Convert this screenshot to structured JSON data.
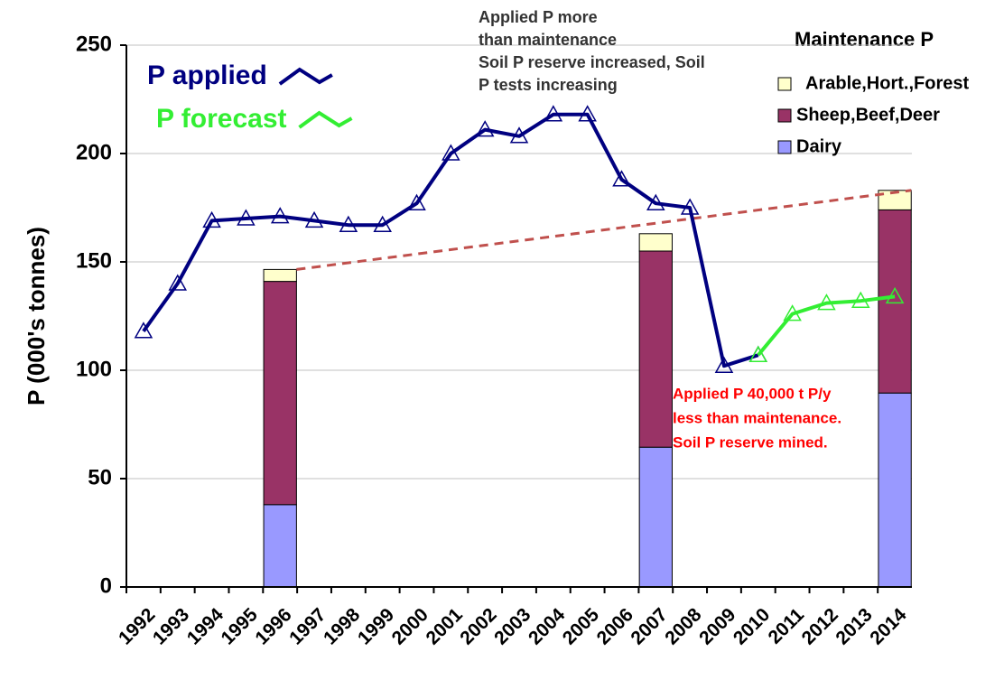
{
  "chart_data": {
    "type": "combo",
    "y_label": "P (000's tonnes)",
    "categories": [
      "1992",
      "1993",
      "1994",
      "1995",
      "1996",
      "1997",
      "1998",
      "1999",
      "2000",
      "2001",
      "2002",
      "2003",
      "2004",
      "2005",
      "2006",
      "2007",
      "2008",
      "2009",
      "2010",
      "2011",
      "2012",
      "2013",
      "2014"
    ],
    "ylim": [
      0,
      250
    ],
    "yticks": [
      0,
      50,
      100,
      150,
      200,
      250
    ],
    "grid": true,
    "bar_legend_title": "Maintenance P",
    "series": [
      {
        "name": "Dairy",
        "type": "bar",
        "color": "#9999ff",
        "values": [
          null,
          null,
          null,
          null,
          38,
          null,
          null,
          null,
          null,
          null,
          null,
          null,
          null,
          null,
          null,
          64.5,
          null,
          null,
          null,
          null,
          null,
          null,
          89.5
        ]
      },
      {
        "name": "Sheep,Beef,Deer",
        "type": "bar",
        "color": "#993366",
        "values": [
          null,
          null,
          null,
          null,
          103,
          null,
          null,
          null,
          null,
          null,
          null,
          null,
          null,
          null,
          null,
          90.5,
          null,
          null,
          null,
          null,
          null,
          null,
          84.5
        ]
      },
      {
        "name": "Arable,Hort.,Forest",
        "type": "bar",
        "color": "#ffffcc",
        "values": [
          null,
          null,
          null,
          null,
          5.5,
          null,
          null,
          null,
          null,
          null,
          null,
          null,
          null,
          null,
          null,
          8,
          null,
          null,
          null,
          null,
          null,
          null,
          9
        ]
      },
      {
        "name": "P applied",
        "type": "line",
        "color": "#000080",
        "values": [
          118,
          140,
          169,
          170,
          171,
          169,
          167,
          167,
          177,
          200,
          211,
          208,
          218,
          218,
          188,
          177,
          175,
          102,
          107,
          null,
          null,
          null,
          null
        ]
      },
      {
        "name": "P forecast",
        "type": "line",
        "color": "#33ee33",
        "values": [
          null,
          null,
          null,
          null,
          null,
          null,
          null,
          null,
          null,
          null,
          null,
          null,
          null,
          null,
          null,
          null,
          null,
          null,
          107,
          126,
          131,
          132,
          134
        ]
      }
    ],
    "annotations": [
      {
        "lines": [
          "Applied P  more",
          "than maintenance",
          "Soil P reserve increased, Soil",
          "P tests increasing"
        ],
        "color": "#333333"
      },
      {
        "lines": [
          "Applied P 40,000 t  P/y",
          "less than maintenance.",
          "Soil P reserve mined."
        ],
        "color": "#ff0000"
      }
    ]
  }
}
